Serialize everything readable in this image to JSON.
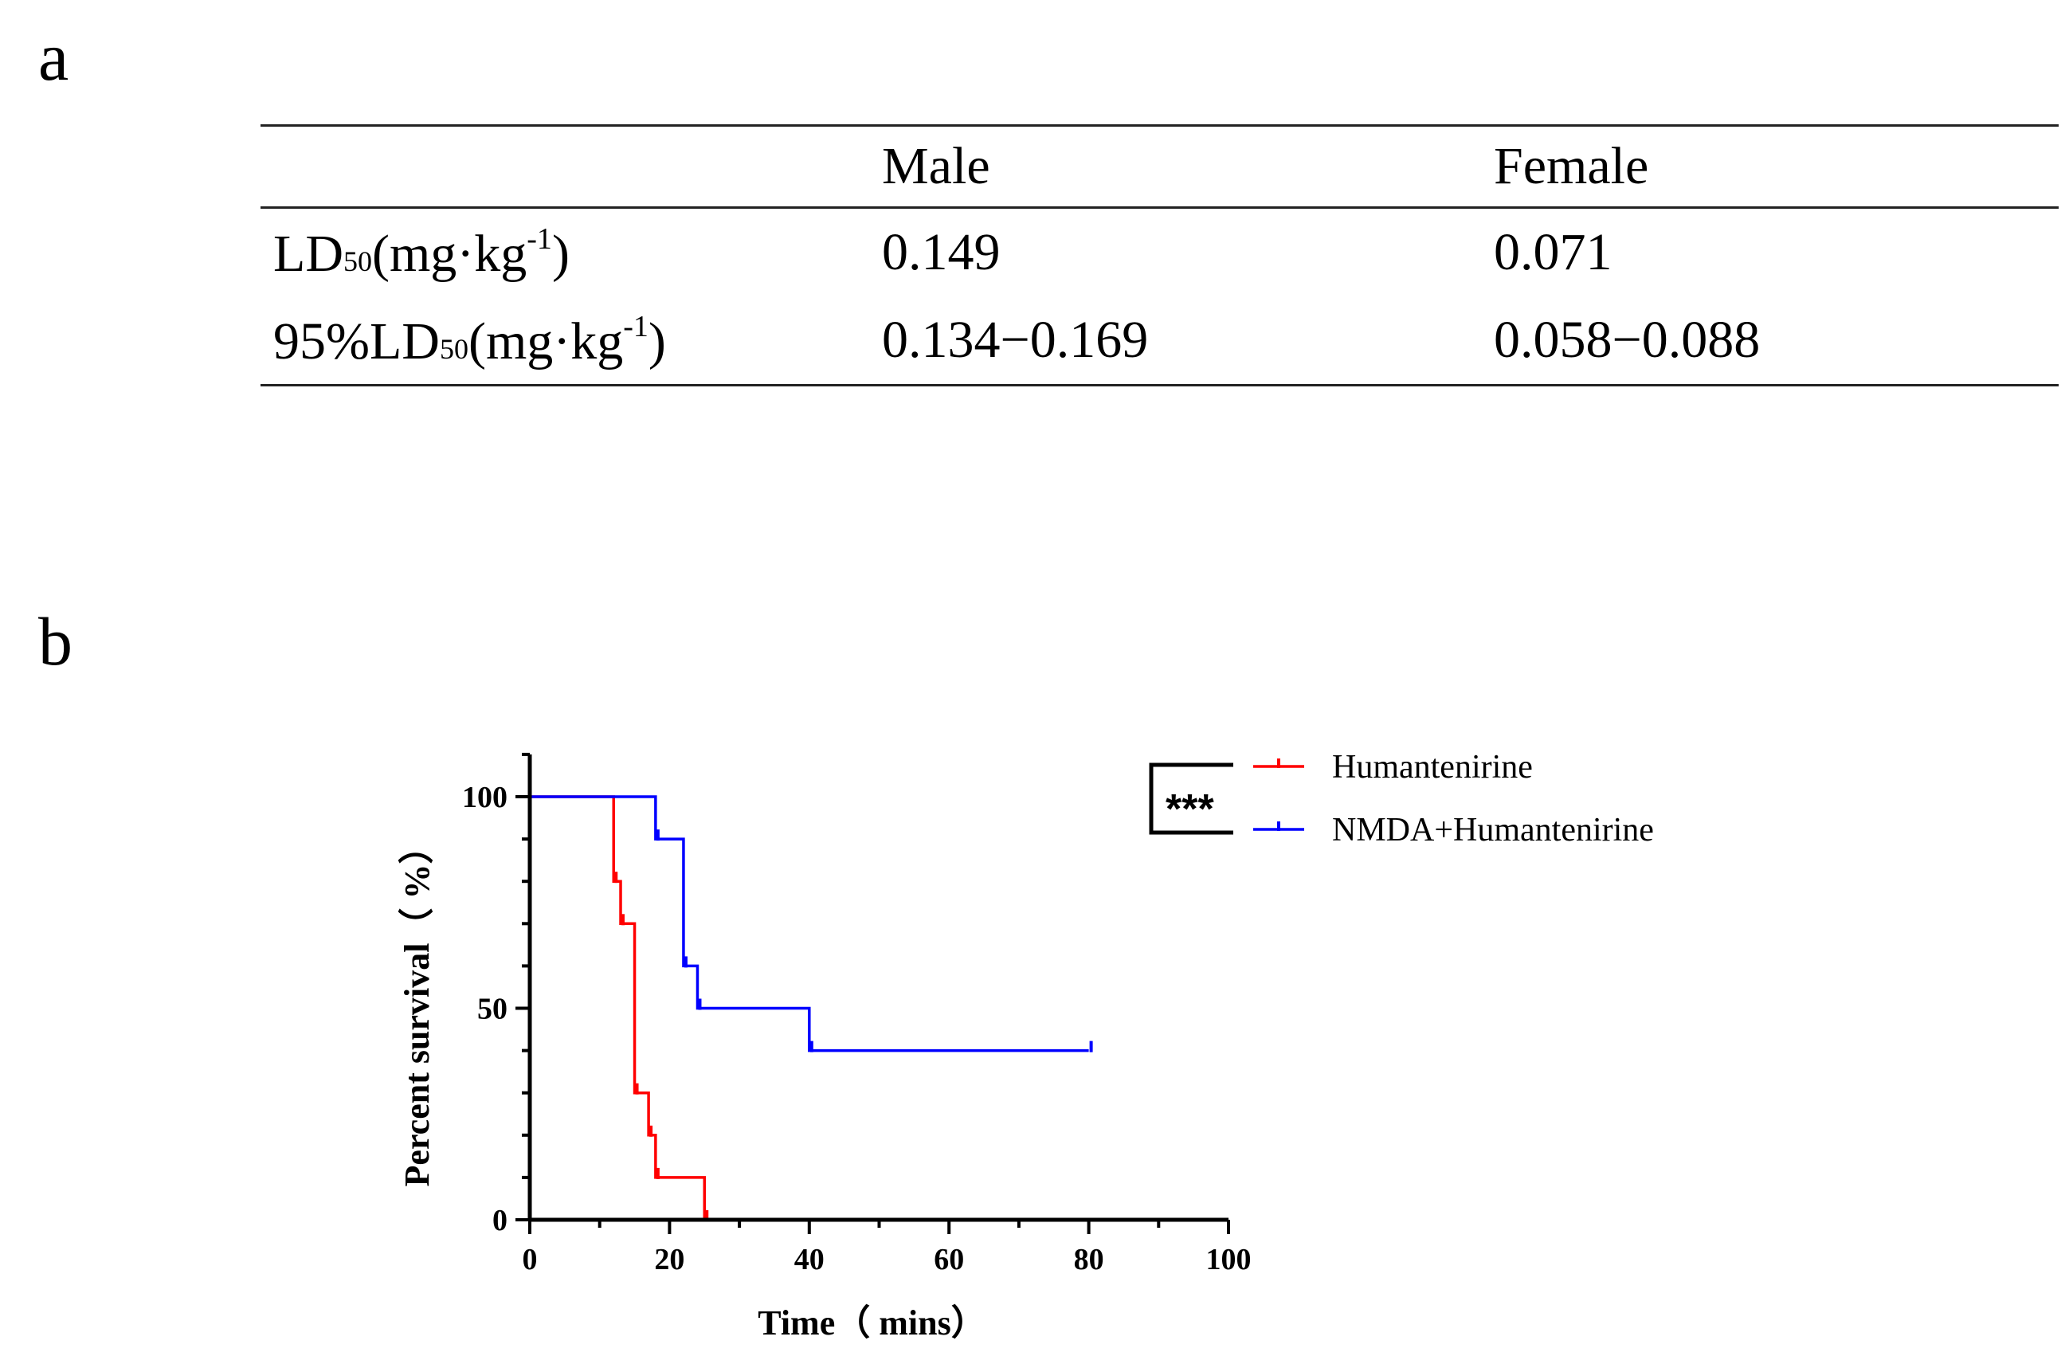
{
  "panel_a": {
    "label": "a",
    "table": {
      "headers": [
        "",
        "Male",
        "Female"
      ],
      "rows": [
        {
          "label_main": "LD",
          "label_sub": "50",
          "label_unit": "(mg·kg",
          "label_sup": "-1",
          "label_close": ")",
          "male": "0.149",
          "female": "0.071"
        },
        {
          "label_main": "95%LD",
          "label_sub": "50",
          "label_unit": "(mg·kg",
          "label_sup": "-1",
          "label_close": ")",
          "male": "0.134−0.169",
          "female": "0.058−0.088"
        }
      ]
    }
  },
  "panel_b": {
    "label": "b"
  },
  "chart_data": {
    "type": "line",
    "subtype": "kaplan-meier step",
    "xlabel": "Time（ mins）",
    "ylabel": "Percent survival（ %）",
    "xlim": [
      0,
      100
    ],
    "ylim": [
      0,
      110
    ],
    "xticks": [
      0,
      20,
      40,
      60,
      80,
      100
    ],
    "yticks": [
      0,
      50,
      100
    ],
    "xtick_labels": [
      "0",
      "20",
      "40",
      "60",
      "80",
      "100"
    ],
    "ytick_labels": [
      "0",
      "50",
      "100"
    ],
    "significance": "***",
    "series": [
      {
        "name": "Humantenirine",
        "color": "#ff0000",
        "steps": [
          [
            0,
            100
          ],
          [
            12,
            80
          ],
          [
            13,
            70
          ],
          [
            15,
            30
          ],
          [
            17,
            20
          ],
          [
            18,
            10
          ],
          [
            25,
            0
          ]
        ],
        "end_x": 25,
        "censor_ticks": [
          [
            12,
            80
          ],
          [
            13,
            70
          ],
          [
            15,
            30
          ],
          [
            17,
            20
          ],
          [
            18,
            10
          ],
          [
            25,
            0
          ]
        ]
      },
      {
        "name": "NMDA+Humantenirine",
        "color": "#0000ff",
        "steps": [
          [
            0,
            100
          ],
          [
            18,
            90
          ],
          [
            22,
            60
          ],
          [
            24,
            50
          ],
          [
            40,
            40
          ]
        ],
        "end_x": 80,
        "censor_ticks": [
          [
            18,
            90
          ],
          [
            22,
            60
          ],
          [
            24,
            50
          ],
          [
            40,
            40
          ],
          [
            80,
            40
          ]
        ]
      }
    ]
  }
}
